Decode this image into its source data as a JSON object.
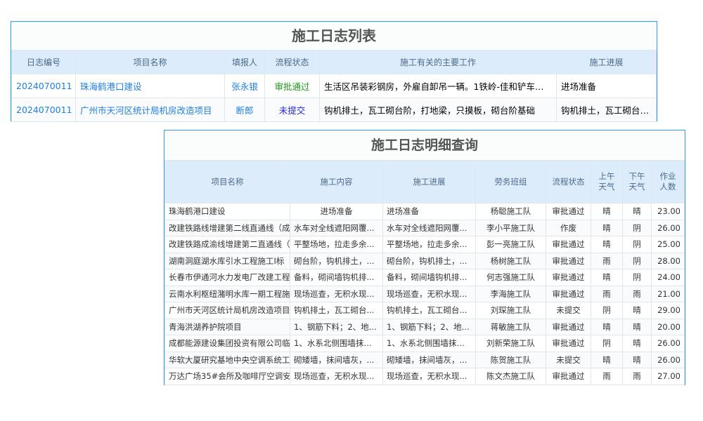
{
  "list": {
    "title": "施工日志列表",
    "headers": [
      "日志编号",
      "项目名称",
      "填报人",
      "流程状态",
      "施工有关的主要工作",
      "施工进展"
    ],
    "rows": [
      {
        "id": "2024070011",
        "project": "珠海鹤港口建设",
        "reporter": "张永银",
        "status": "审批通过",
        "work": "生活区吊装彩钢房，外雇自卸吊一辆。1铁岭-佳和铲车一台",
        "progress": "进场准备"
      },
      {
        "id": "2024070011",
        "project": "广州市天河区统计局机房改造项目",
        "reporter": "断郎",
        "status": "未提交",
        "work": "钩机排土，瓦工砌台阶，打地梁，只摸板，砌台阶基础",
        "progress": "钩机排土，瓦工砌台阶，打地梁"
      }
    ]
  },
  "detail": {
    "title": "施工日志明细查询",
    "headers": [
      "项目名称",
      "施工内容",
      "施工进展",
      "劳务班组",
      "流程状态",
      "上午天气",
      "下午天气",
      "作业人数"
    ],
    "rows": [
      {
        "project": "珠海鹤港口建设",
        "content": "进场准备",
        "progress": "进场准备",
        "team": "杨聪施工队",
        "status": "审批通过",
        "am": "晴",
        "pm": "晴",
        "workers": "23.00"
      },
      {
        "project": "改建铁路线增建第二线直通线（成都-",
        "content": "水车对全线遮阳网覆...",
        "progress": "水车对全线遮阳网覆...",
        "team": "李小平施工队",
        "status": "作废",
        "am": "晴",
        "pm": "阴",
        "workers": "26.00"
      },
      {
        "project": "改建铁路成渝线增建第二直通线（成渝",
        "content": "平整场地，拉走多余...",
        "progress": "平整场地，拉走多余...",
        "team": "彭一亮施工队",
        "status": "审批通过",
        "am": "晴",
        "pm": "阴",
        "workers": "25.00"
      },
      {
        "project": "湖南洞庭湖水库引水工程施工Ⅰ标",
        "content": "砌台阶，钩机排土，...",
        "progress": "砌台阶，钩机排土，...",
        "team": "杨树施工队",
        "status": "审批通过",
        "am": "雨",
        "pm": "阴",
        "workers": "28.00"
      },
      {
        "project": "长春市伊通河水力发电厂改建工程",
        "content": "备料，砌间墙钩机排...",
        "progress": "备料，砌间墙钩机排...",
        "team": "何志强施工队",
        "status": "审批通过",
        "am": "晴",
        "pm": "阴",
        "workers": "24.00"
      },
      {
        "project": "云南水利枢纽潴明水库一期工程施工Ⅰ",
        "content": "现场巡查，无积水现...",
        "progress": "现场巡查，无积水现...",
        "team": "李海施工队",
        "status": "审批通过",
        "am": "雨",
        "pm": "雨",
        "workers": "21.00"
      },
      {
        "project": "广州市天河区统计局机房改造项目",
        "content": "钩机排土，瓦工砌台...",
        "progress": "钩机排土，瓦工砌台...",
        "team": "刘琛施工队",
        "status": "未提交",
        "am": "阴",
        "pm": "晴",
        "workers": "29.00"
      },
      {
        "project": "青海洪湖养护院项目",
        "content": "1、钢筋下料；2、地...",
        "progress": "1、钢筋下料；2、地...",
        "team": "蒋敏施工队",
        "status": "审批通过",
        "am": "晴",
        "pm": "晴",
        "workers": "20.00"
      },
      {
        "project": "成都能源建设集团投资有限公司临时办",
        "content": "1、水系北侧围墙抹灰...",
        "progress": "1、水系北侧围墙抹灰...",
        "team": "刘新荣施工队",
        "status": "审批通过",
        "am": "阴",
        "pm": "晴",
        "workers": "26.00"
      },
      {
        "project": "华软大厦研究基地中央空调系统工程",
        "content": "砌矮墙，抹间墙灰，...",
        "progress": "砌矮墙，抹间墙灰，...",
        "team": "陈贺施工队",
        "status": "未提交",
        "am": "晴",
        "pm": "晴",
        "workers": "26.00"
      },
      {
        "project": "万达广场35#会所及咖啡厅空调安装工",
        "content": "现场巡查，无积水现...",
        "progress": "现场巡查，无积水现...",
        "team": "陈文杰施工队",
        "status": "审批通过",
        "am": "雨",
        "pm": "雨",
        "workers": "27.00"
      }
    ]
  },
  "status_colors": {
    "审批通过": "#1e9a1e",
    "未提交": "#2222e0",
    "作废": "#a020a0"
  }
}
